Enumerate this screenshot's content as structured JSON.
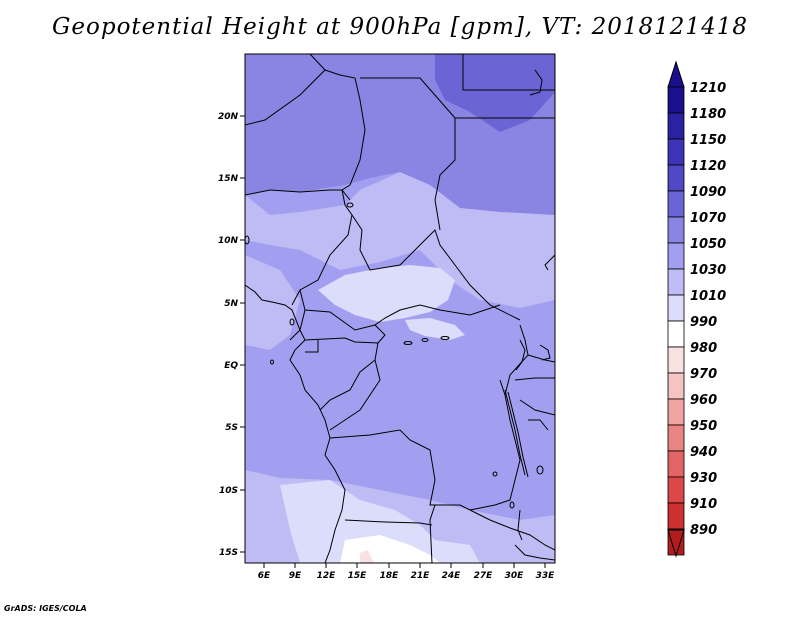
{
  "title": "Geopotential Height at 900hPa [gpm], VT: 2018121418",
  "credit": "GrADS: IGES/COLA",
  "map": {
    "lon_ticks": [
      "6E",
      "9E",
      "12E",
      "15E",
      "18E",
      "21E",
      "24E",
      "27E",
      "30E",
      "33E"
    ],
    "lat_ticks": [
      "20N",
      "15N",
      "10N",
      "5N",
      "EQ",
      "5S",
      "10S",
      "15S"
    ]
  },
  "colorbar": {
    "labels": [
      "1210",
      "1180",
      "1150",
      "1120",
      "1090",
      "1070",
      "1050",
      "1030",
      "1010",
      "990",
      "980",
      "970",
      "960",
      "950",
      "940",
      "930",
      "910",
      "890"
    ],
    "colors": [
      "#1a0f8c",
      "#2a21a3",
      "#3c33b6",
      "#5148c6",
      "#6b64d4",
      "#8a84e2",
      "#a39ff0",
      "#bebbf5",
      "#dcdcfb",
      "#ffffff",
      "#fbe2e2",
      "#f6c3c3",
      "#f0a3a3",
      "#e98484",
      "#e36464",
      "#dc4848",
      "#cc3030",
      "#b21e1e"
    ],
    "top_arrow_color": "#1a0f8c",
    "bottom_arrow_color": "#b21e1e"
  }
}
